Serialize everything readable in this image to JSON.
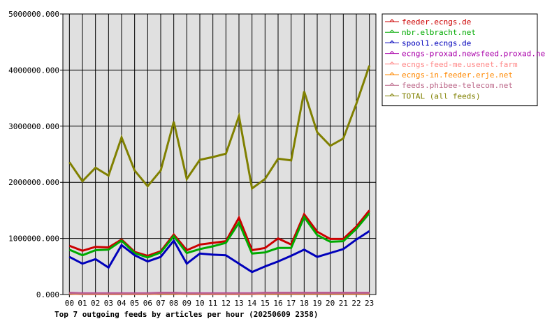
{
  "chart_data": {
    "type": "line",
    "title": "Top 7 outgoing feeds by articles per hour (20250609 2358)",
    "xlabel": "",
    "ylabel": "",
    "categories": [
      "00",
      "01",
      "02",
      "03",
      "04",
      "05",
      "06",
      "07",
      "08",
      "09",
      "10",
      "11",
      "12",
      "13",
      "14",
      "15",
      "16",
      "17",
      "18",
      "19",
      "20",
      "21",
      "22",
      "23"
    ],
    "ylim": [
      0,
      5000000
    ],
    "yticks": [
      0,
      1000000,
      2000000,
      3000000,
      4000000,
      5000000
    ],
    "ytick_labels": [
      "0.000",
      "1000000.000",
      "2000000.000",
      "3000000.000",
      "4000000.000",
      "5000000.000"
    ],
    "grid": true,
    "legend_position": "top-right",
    "series": [
      {
        "name": "feeder.ecngs.de",
        "color": "#cc0000",
        "values": [
          870000,
          780000,
          850000,
          840000,
          980000,
          760000,
          690000,
          770000,
          1070000,
          790000,
          890000,
          920000,
          950000,
          1370000,
          790000,
          830000,
          1000000,
          890000,
          1430000,
          1120000,
          990000,
          990000,
          1210000,
          1500000
        ]
      },
      {
        "name": "nbr.elbracht.net",
        "color": "#00aa00",
        "values": [
          800000,
          700000,
          790000,
          800000,
          960000,
          740000,
          660000,
          750000,
          1040000,
          740000,
          810000,
          860000,
          920000,
          1280000,
          730000,
          750000,
          830000,
          830000,
          1380000,
          1060000,
          940000,
          950000,
          1170000,
          1450000
        ]
      },
      {
        "name": "spool1.ecngs.de",
        "color": "#0000bb",
        "values": [
          670000,
          550000,
          630000,
          480000,
          880000,
          700000,
          590000,
          670000,
          960000,
          550000,
          730000,
          710000,
          700000,
          550000,
          400000,
          500000,
          590000,
          690000,
          800000,
          670000,
          740000,
          810000,
          980000,
          1130000
        ]
      },
      {
        "name": "ecngs-proxad.newsfeed.proxad.net",
        "color": "#aa00aa",
        "values": [
          30000,
          20000,
          20000,
          20000,
          20000,
          20000,
          20000,
          30000,
          30000,
          20000,
          20000,
          20000,
          20000,
          20000,
          20000,
          30000,
          30000,
          30000,
          30000,
          30000,
          30000,
          30000,
          30000,
          30000
        ]
      },
      {
        "name": "ecngs-feed-me.usenet.farm",
        "color": "#ff8888",
        "values": [
          20000,
          10000,
          10000,
          10000,
          10000,
          10000,
          10000,
          20000,
          20000,
          10000,
          10000,
          10000,
          10000,
          10000,
          10000,
          20000,
          20000,
          20000,
          20000,
          20000,
          20000,
          20000,
          20000,
          20000
        ]
      },
      {
        "name": "ecngs-in.feeder.erje.net",
        "color": "#ff8800",
        "values": [
          15000,
          10000,
          10000,
          10000,
          10000,
          10000,
          10000,
          15000,
          15000,
          10000,
          10000,
          10000,
          10000,
          10000,
          10000,
          15000,
          15000,
          15000,
          15000,
          15000,
          15000,
          15000,
          15000,
          15000
        ]
      },
      {
        "name": "feeds.phibee-telecom.net",
        "color": "#bb6688",
        "values": [
          25000,
          15000,
          15000,
          15000,
          15000,
          15000,
          15000,
          25000,
          25000,
          15000,
          15000,
          15000,
          15000,
          15000,
          15000,
          25000,
          25000,
          25000,
          25000,
          25000,
          25000,
          25000,
          25000,
          25000
        ]
      },
      {
        "name": "TOTAL (all feeds)",
        "color": "#808000",
        "values": [
          2360000,
          2020000,
          2260000,
          2120000,
          2800000,
          2210000,
          1930000,
          2210000,
          3080000,
          2060000,
          2400000,
          2450000,
          2510000,
          3180000,
          1890000,
          2060000,
          2420000,
          2390000,
          3620000,
          2890000,
          2650000,
          2780000,
          3400000,
          4080000
        ]
      }
    ]
  }
}
